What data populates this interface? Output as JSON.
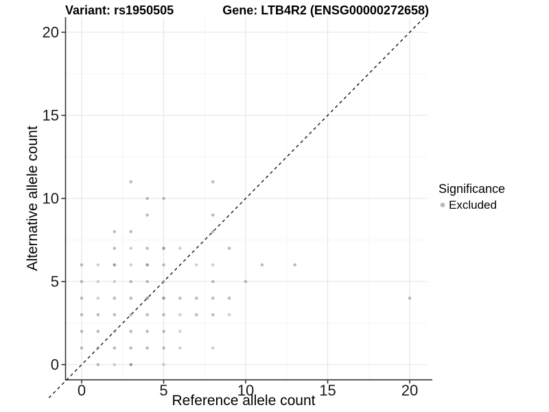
{
  "titles": {
    "left": "Variant: rs1950505",
    "right": "Gene: LTB4R2 (ENSG00000272658)"
  },
  "chart_data": {
    "type": "scatter",
    "title_left": "Variant: rs1950505",
    "title_right": "Gene: LTB4R2 (ENSG00000272658)",
    "xlabel": "Reference allele count",
    "ylabel": "Alternative allele count",
    "xlim": [
      -1,
      21.3
    ],
    "ylim": [
      -0.9,
      20.9
    ],
    "xticks": [
      0,
      5,
      10,
      15,
      20
    ],
    "yticks": [
      0,
      5,
      10,
      15,
      20
    ],
    "minor_gridlines": [
      2.5,
      7.5,
      12.5,
      17.5
    ],
    "grid": true,
    "identity_line": {
      "style": "dashed",
      "slope": 1,
      "intercept": 0,
      "span": [
        -2,
        21
      ]
    },
    "legend": {
      "position": "right",
      "title": "Significance",
      "items": [
        {
          "label": "Excluded",
          "color": "#8f8f8f"
        }
      ]
    },
    "point_color": "#8f8f8f",
    "opacity_levels": {
      "l": 0.42,
      "m": 0.62,
      "d": 0.88
    },
    "points": [
      [
        1,
        0,
        "m"
      ],
      [
        2,
        0,
        "l"
      ],
      [
        3,
        0,
        "d"
      ],
      [
        5,
        0,
        "l"
      ],
      [
        0,
        1,
        "m"
      ],
      [
        1,
        1,
        "m"
      ],
      [
        2,
        1,
        "m"
      ],
      [
        3,
        1,
        "m"
      ],
      [
        4,
        1,
        "m"
      ],
      [
        5,
        1,
        "m"
      ],
      [
        6,
        1,
        "l"
      ],
      [
        8,
        1,
        "l"
      ],
      [
        0,
        2,
        "m"
      ],
      [
        1,
        2,
        "m"
      ],
      [
        2,
        2,
        "m"
      ],
      [
        3,
        2,
        "m"
      ],
      [
        4,
        2,
        "m"
      ],
      [
        5,
        2,
        "m"
      ],
      [
        6,
        2,
        "l"
      ],
      [
        0,
        3,
        "m"
      ],
      [
        1,
        3,
        "m"
      ],
      [
        2,
        3,
        "m"
      ],
      [
        3,
        3,
        "m"
      ],
      [
        4,
        3,
        "m"
      ],
      [
        5,
        3,
        "m"
      ],
      [
        6,
        3,
        "l"
      ],
      [
        7,
        3,
        "m"
      ],
      [
        8,
        3,
        "m"
      ],
      [
        9,
        3,
        "l"
      ],
      [
        0,
        4,
        "m"
      ],
      [
        1,
        4,
        "l"
      ],
      [
        2,
        4,
        "m"
      ],
      [
        3,
        4,
        "m"
      ],
      [
        4,
        4,
        "d"
      ],
      [
        5,
        4,
        "d"
      ],
      [
        6,
        4,
        "m"
      ],
      [
        7,
        4,
        "m"
      ],
      [
        8,
        4,
        "m"
      ],
      [
        9,
        4,
        "m"
      ],
      [
        20,
        4,
        "m"
      ],
      [
        0,
        5,
        "m"
      ],
      [
        1,
        5,
        "l"
      ],
      [
        2,
        5,
        "l"
      ],
      [
        3,
        5,
        "m"
      ],
      [
        4,
        5,
        "m"
      ],
      [
        5,
        5,
        "m"
      ],
      [
        8,
        5,
        "m"
      ],
      [
        10,
        5,
        "m"
      ],
      [
        0,
        6,
        "m"
      ],
      [
        1,
        6,
        "l"
      ],
      [
        2,
        6,
        "d"
      ],
      [
        3,
        6,
        "l"
      ],
      [
        4,
        6,
        "d"
      ],
      [
        5,
        6,
        "m"
      ],
      [
        7,
        6,
        "l"
      ],
      [
        8,
        6,
        "l"
      ],
      [
        11,
        6,
        "m"
      ],
      [
        13,
        6,
        "m"
      ],
      [
        2,
        7,
        "m"
      ],
      [
        3,
        7,
        "l"
      ],
      [
        4,
        7,
        "m"
      ],
      [
        5,
        7,
        "d"
      ],
      [
        6,
        7,
        "l"
      ],
      [
        9,
        7,
        "m"
      ],
      [
        2,
        8,
        "m"
      ],
      [
        3,
        8,
        "m"
      ],
      [
        8,
        8,
        "m"
      ],
      [
        4,
        9,
        "m"
      ],
      [
        8,
        9,
        "m"
      ],
      [
        4,
        10,
        "m"
      ],
      [
        5,
        10,
        "m"
      ],
      [
        3,
        11,
        "m"
      ],
      [
        8,
        11,
        "m"
      ]
    ],
    "colors": {
      "axis": "#333333",
      "tick": "#333333",
      "grid_major": "#e3e3e3",
      "grid_minor": "#f0f0f0",
      "identity_line": "#111111",
      "background": "#ffffff"
    }
  }
}
